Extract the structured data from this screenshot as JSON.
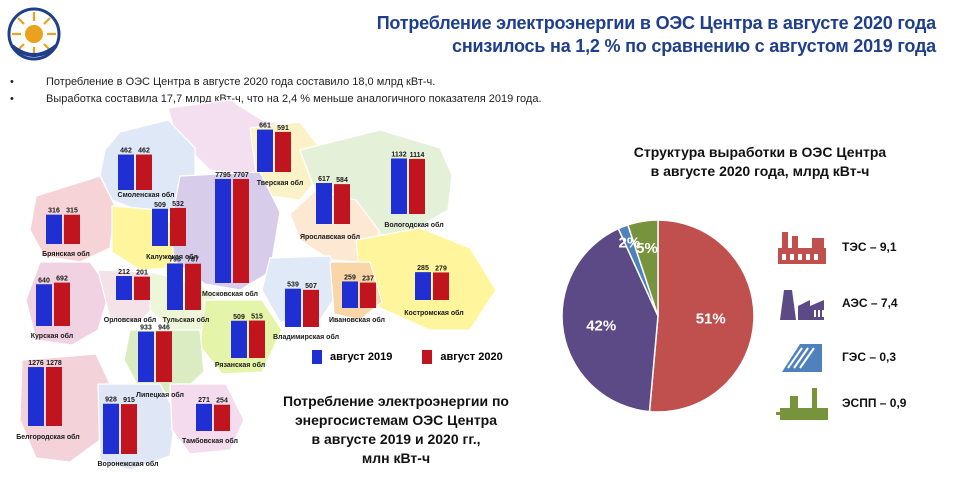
{
  "header": {
    "title_line1": "Потребление электроэнергии в ОЭС Центра в августе 2020 года",
    "title_line2": "снизилось на 1,2 % по сравнению с августом 2019 года"
  },
  "bullets": [
    "Потребление  в ОЭС Центра в августе 2020 года составило  18,0 млрд кВт-ч.",
    "Выработка  составила  17,7 млрд кВт-ч, что  на 2,4 % меньше аналогичного  показателя  2019 года."
  ],
  "colors": {
    "bar_2019": "#1f2fd1",
    "bar_2020": "#c0141e",
    "title": "#1f3f8c"
  },
  "chart_data": [
    {
      "type": "bar",
      "series": [
        {
          "name": "август 2019"
        },
        {
          "name": "август 2020"
        }
      ],
      "categories": [
        "Смоленская обл",
        "Тверская обл",
        "Вологодская обл",
        "Брянская обл",
        "Калужская обл",
        "Московская обл",
        "Ярославская обл",
        "Орловская обл",
        "Тульская обл",
        "Курская обл",
        "Костромская обл",
        "Владимирская обл",
        "Ивановская обл",
        "Рязанская обл",
        "Липецкая обл",
        "Белгородская обл",
        "Воронежская обл",
        "Тамбовская обл"
      ],
      "values_2019": [
        462,
        661,
        1132,
        316,
        509,
        7795,
        617,
        212,
        796,
        640,
        285,
        539,
        259,
        509,
        933,
        1276,
        928,
        271
      ],
      "values_2020": [
        462,
        591,
        1114,
        315,
        532,
        7707,
        584,
        201,
        787,
        692,
        279,
        507,
        237,
        515,
        946,
        1278,
        915,
        254
      ],
      "title": "Потребление электроэнергии по энергосистемам ОЭС Центра в августе 2019 и 2020 гг., млн кВт-ч",
      "legend": "inline"
    },
    {
      "type": "pie",
      "title": "Структура выработки в ОЭС Центра в августе 2020 года, млрд кВт-ч",
      "labels": [
        "ТЭС",
        "АЭС",
        "ГЭС",
        "ЭСПП"
      ],
      "values": [
        9.1,
        7.4,
        0.3,
        0.9
      ],
      "percent_labels": [
        "51%",
        "42%",
        "2%",
        "5%"
      ],
      "legend_text": [
        "ТЭС – 9,1",
        "АЭС – 7,4",
        "ГЭС – 0,3",
        "ЭСПП – 0,9"
      ],
      "colors": [
        "#c0504d",
        "#5c4a86",
        "#4f81bd",
        "#77933c"
      ]
    }
  ],
  "map_caption": [
    "Потребление электроэнергии по",
    "энергосистемам ОЭС Центра",
    "в августе 2019 и 2020 гг.,",
    "млн кВт-ч"
  ],
  "pie_title": [
    "Структура выработки в ОЭС Центра",
    "в августе 2020 года, млрд кВт-ч"
  ],
  "icons": {
    "logo": "sun-logo-icon",
    "tes": "thermal-plant-icon",
    "aes": "nuclear-plant-icon",
    "ges": "hydro-plant-icon",
    "espp": "industrial-plant-icon"
  }
}
